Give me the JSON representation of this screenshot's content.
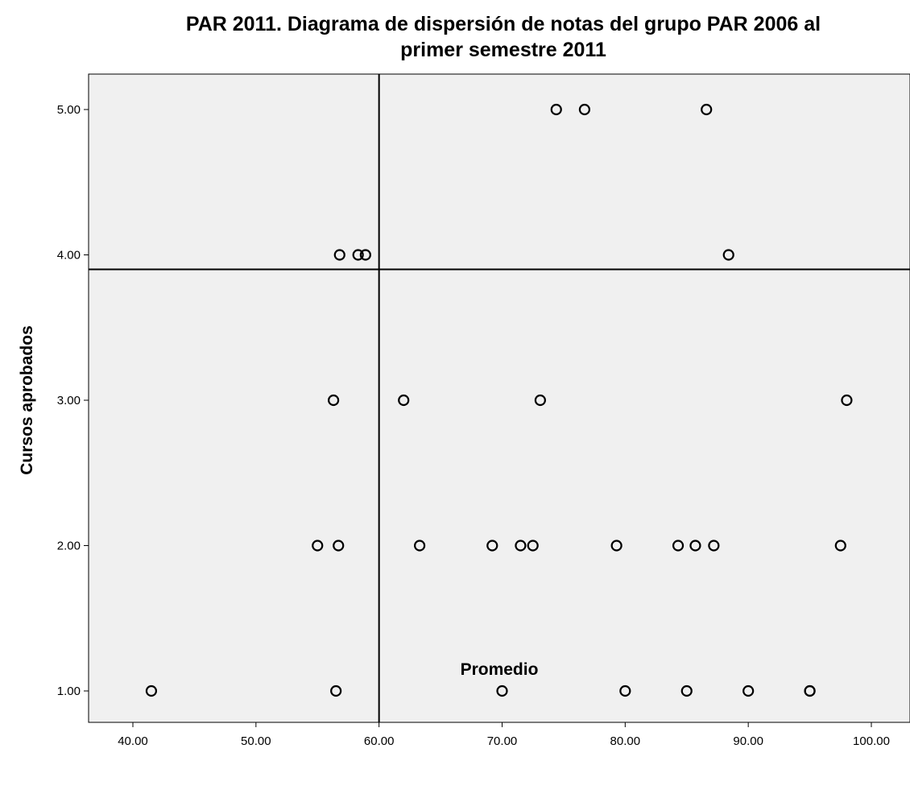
{
  "chart_data": {
    "type": "scatter",
    "title_lines": [
      "PAR 2011. Diagrama de dispersión de notas del grupo PAR 2006 al",
      "primer semestre 2011"
    ],
    "xlabel": "Promedio",
    "ylabel": "Cursos aprobados",
    "xlim": [
      36.8,
      100.5
    ],
    "ylim": [
      0.8,
      5.25
    ],
    "x_ticks": [
      "40.00",
      "50.00",
      "60.00",
      "70.00",
      "80.00",
      "90.00",
      "100.00"
    ],
    "y_ticks": [
      "1.00",
      "2.00",
      "3.00",
      "4.00",
      "5.00"
    ],
    "reference_lines": {
      "x": 60.0,
      "y": 3.9
    },
    "grid": false,
    "legend": "none",
    "colors": {
      "plot_background": "#f0f0f0",
      "marker_edge": "#000000"
    },
    "points": [
      {
        "x": 41.5,
        "y": 1
      },
      {
        "x": 56.5,
        "y": 1
      },
      {
        "x": 70.0,
        "y": 1
      },
      {
        "x": 80.0,
        "y": 1
      },
      {
        "x": 85.0,
        "y": 1
      },
      {
        "x": 90.0,
        "y": 1
      },
      {
        "x": 95.0,
        "y": 1
      },
      {
        "x": 95.0,
        "y": 1
      },
      {
        "x": 55.0,
        "y": 2
      },
      {
        "x": 56.7,
        "y": 2
      },
      {
        "x": 63.3,
        "y": 2
      },
      {
        "x": 69.2,
        "y": 2
      },
      {
        "x": 71.5,
        "y": 2
      },
      {
        "x": 72.5,
        "y": 2
      },
      {
        "x": 79.3,
        "y": 2
      },
      {
        "x": 84.3,
        "y": 2
      },
      {
        "x": 85.7,
        "y": 2
      },
      {
        "x": 87.2,
        "y": 2
      },
      {
        "x": 97.5,
        "y": 2
      },
      {
        "x": 56.3,
        "y": 3
      },
      {
        "x": 62.0,
        "y": 3
      },
      {
        "x": 73.1,
        "y": 3
      },
      {
        "x": 98.0,
        "y": 3
      },
      {
        "x": 56.8,
        "y": 4
      },
      {
        "x": 58.3,
        "y": 4
      },
      {
        "x": 58.9,
        "y": 4
      },
      {
        "x": 88.4,
        "y": 4
      },
      {
        "x": 74.4,
        "y": 5
      },
      {
        "x": 76.7,
        "y": 5
      },
      {
        "x": 86.6,
        "y": 5
      }
    ]
  }
}
